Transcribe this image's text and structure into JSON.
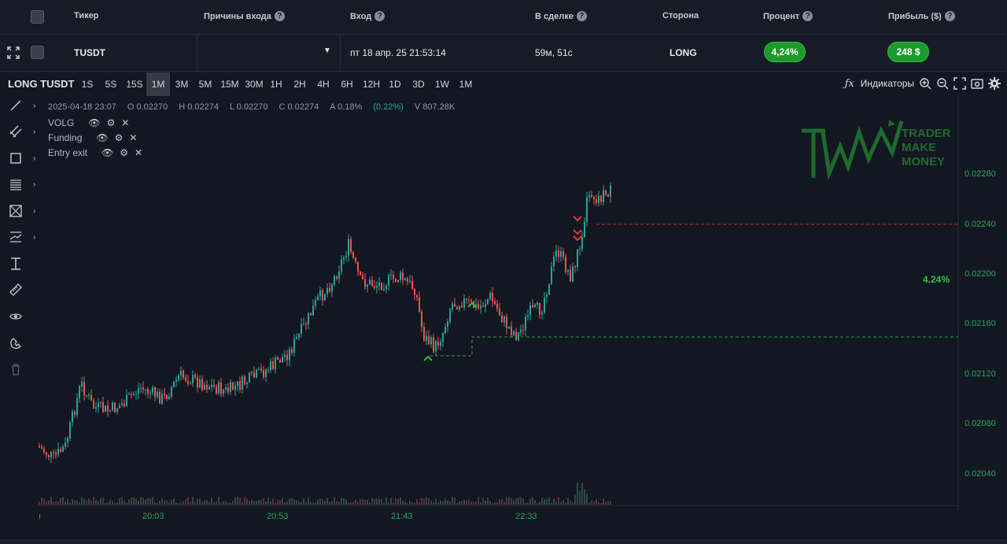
{
  "table": {
    "headers": {
      "ticker": "Тикер",
      "entry_reasons": "Причины входа",
      "entry": "Вход",
      "in_trade": "В сделке",
      "side": "Сторона",
      "percent": "Процент",
      "profit": "Прибыль ($)"
    },
    "row": {
      "ticker": "TUSDT",
      "entry": "пт 18 апр. 25 21:53:14",
      "in_trade": "59м, 51с",
      "side": "LONG",
      "percent": "4,24%",
      "profit": "248 $"
    }
  },
  "chart": {
    "title": "LONG TUSDT",
    "timeframes": [
      "1S",
      "5S",
      "15S",
      "1M",
      "3M",
      "5M",
      "15M",
      "30M",
      "1H",
      "2H",
      "4H",
      "6H",
      "12H",
      "1D",
      "3D",
      "1W",
      "1M"
    ],
    "active_timeframe_index": 3,
    "indicators_label": "Индикаторы",
    "ohlc": {
      "date": "2025-04-18 23:07",
      "open": "O 0.02270",
      "high": "H 0.02274",
      "low": "L 0.02270",
      "close": "C 0.02274",
      "amp": "A 0.18%",
      "change": "(0.22%)",
      "volume": "V 807.28K"
    },
    "indicators": [
      "VOLG",
      "Funding",
      "Entry exit"
    ],
    "logo": {
      "line1": "TRADER",
      "line2": "MAKE",
      "line3": "MONEY"
    },
    "price_axis": [
      "0.02280",
      "0.02240",
      "0.02200",
      "0.02160",
      "0.02120",
      "0.02080",
      "0.02040"
    ],
    "time_axis": [
      "20:03",
      "20:53",
      "21:43",
      "22:33"
    ],
    "percent_label": "4.24%",
    "colors": {
      "up": "#26a69a",
      "down": "#ef5350",
      "accent": "#2ec144",
      "target_line": "#c62828"
    }
  }
}
